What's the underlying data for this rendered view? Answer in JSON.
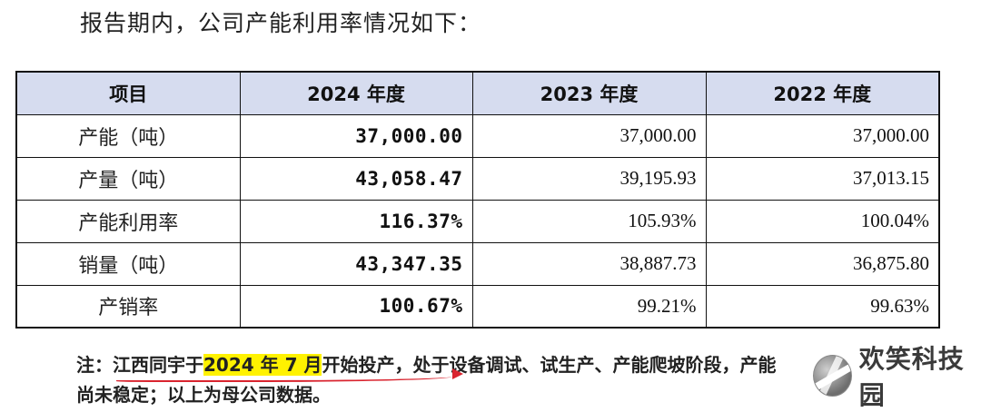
{
  "intro": "报告期内，公司产能利用率情况如下：",
  "table": {
    "headers": [
      "项目",
      "2024 年度",
      "2023 年度",
      "2022 年度"
    ],
    "rows": [
      {
        "label": "产能（吨）",
        "v2024": "37,000.00",
        "v2023": "37,000.00",
        "v2022": "37,000.00"
      },
      {
        "label": "产量（吨）",
        "v2024": "43,058.47",
        "v2023": "39,195.93",
        "v2022": "37,013.15"
      },
      {
        "label": "产能利用率",
        "v2024": "116.37%",
        "v2023": "105.93%",
        "v2022": "100.04%"
      },
      {
        "label": "销量（吨）",
        "v2024": "43,347.35",
        "v2023": "38,887.73",
        "v2022": "36,875.80"
      },
      {
        "label": "产销率",
        "v2024": "100.67%",
        "v2023": "99.21%",
        "v2022": "99.63%"
      }
    ]
  },
  "note": {
    "prefix": "注：江西同宇于",
    "highlight": "2024 年 7 月",
    "line1_rest": "开始投产，处于设备调试、试生产、产能爬坡阶段，产能",
    "line2": "尚未稳定；以上为母公司数据。"
  },
  "watermark": {
    "text": "欢笑科技园",
    "icon": "volleyball-logo-icon"
  },
  "colors": {
    "header_bg": "#d6dcef",
    "highlight": "#fff200",
    "annotation": "#d9242f"
  }
}
